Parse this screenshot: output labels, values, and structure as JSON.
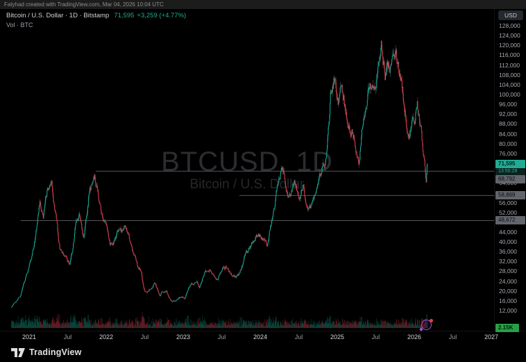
{
  "attribution": "Fatyhad created with TradingView.com, Mar 04, 2026 10:04 UTC",
  "legend": {
    "symbol_line": "Bitcoin / U.S. Dollar · 1D · Bitstamp",
    "price": "71,595",
    "change": "+3,259 (+4.77%)",
    "volume_line": "Vol · BTC"
  },
  "watermark": {
    "title": "BTCUSD, 1D",
    "subtitle": "Bitcoin / U.S. Dollar"
  },
  "price_axis": {
    "currency_button": "USD",
    "ticks": [
      "128,000",
      "124,000",
      "120,000",
      "116,000",
      "112,000",
      "108,000",
      "104,000",
      "100,000",
      "96,000",
      "92,000",
      "88,000",
      "84,000",
      "80,000",
      "76,000",
      "64,000",
      "56,000",
      "52,000",
      "44,000",
      "40,000",
      "36,000",
      "32,000",
      "28,000",
      "24,000",
      "20,000",
      "16,000",
      "12,000"
    ],
    "last_price_label": "71,595",
    "countdown": "13:55:29",
    "volume_value_label": "2.15K"
  },
  "time_axis": {
    "ticks": [
      {
        "label": "2021",
        "year": 2021
      },
      {
        "label": "Jul",
        "year": 2021.5
      },
      {
        "label": "2022",
        "year": 2022
      },
      {
        "label": "Jul",
        "year": 2022.5
      },
      {
        "label": "2023",
        "year": 2023
      },
      {
        "label": "Jul",
        "year": 2023.5
      },
      {
        "label": "2024",
        "year": 2024
      },
      {
        "label": "Jul",
        "year": 2024.5
      },
      {
        "label": "2025",
        "year": 2025
      },
      {
        "label": "Jul",
        "year": 2025.5
      },
      {
        "label": "2026",
        "year": 2026
      },
      {
        "label": "Jul",
        "year": 2026.5
      },
      {
        "label": "2027",
        "year": 2027
      }
    ]
  },
  "footer": {
    "brand": "TradingView"
  },
  "colors": {
    "background": "#000000",
    "up": "#17a38f",
    "down": "#cf3f4e",
    "up_volume": "rgba(16,150,128,0.45)",
    "down_volume": "rgba(207,63,78,0.45)",
    "accent": "#22ab94",
    "line": "#71747c",
    "line_label_bg": "#62656d",
    "last_price_bg": "#22ab94",
    "volume_label_bg": "#28a046"
  },
  "chart_data": {
    "type": "candlestick",
    "symbol": "BTCUSD",
    "name": "Bitcoin / U.S. Dollar",
    "exchange": "Bitstamp",
    "timeframe": "1D",
    "as_of": "Mar 04, 2026 10:04 UTC",
    "last_candle": {
      "close": 71595,
      "change": 3259,
      "change_pct": 4.77,
      "direction": "up"
    },
    "y_axis": {
      "min": 12000,
      "max": 128000,
      "step": 4000,
      "currency": "USD",
      "grid": false
    },
    "x_axis": {
      "start_year": 2020.77,
      "end_year": 2027.04
    },
    "horizontal_lines": [
      {
        "price": 68792,
        "label": "68,792",
        "from_year": 2021.865
      },
      {
        "price": 58869,
        "label": "58,869",
        "from_year": 2023.73
      },
      {
        "price": 48672,
        "label": "48,672",
        "from_year": 2020.89
      }
    ],
    "volume_last_label": "2.15K",
    "event_marker_year": 2026.15,
    "anchors": [
      [
        2020.77,
        13500
      ],
      [
        2020.88,
        18500
      ],
      [
        2020.96,
        26000
      ],
      [
        2021.02,
        33000
      ],
      [
        2021.06,
        38500
      ],
      [
        2021.1,
        46500
      ],
      [
        2021.14,
        57500
      ],
      [
        2021.18,
        48000
      ],
      [
        2021.24,
        58500
      ],
      [
        2021.29,
        63500
      ],
      [
        2021.34,
        54000
      ],
      [
        2021.4,
        36500
      ],
      [
        2021.46,
        34000
      ],
      [
        2021.53,
        29800
      ],
      [
        2021.6,
        46000
      ],
      [
        2021.66,
        48800
      ],
      [
        2021.71,
        41500
      ],
      [
        2021.78,
        61500
      ],
      [
        2021.85,
        67000
      ],
      [
        2021.91,
        56500
      ],
      [
        2021.99,
        46500
      ],
      [
        2022.05,
        38500
      ],
      [
        2022.16,
        43800
      ],
      [
        2022.24,
        46500
      ],
      [
        2022.32,
        38500
      ],
      [
        2022.4,
        29800
      ],
      [
        2022.46,
        28500
      ],
      [
        2022.5,
        19000
      ],
      [
        2022.56,
        21500
      ],
      [
        2022.63,
        24300
      ],
      [
        2022.7,
        18800
      ],
      [
        2022.78,
        20200
      ],
      [
        2022.86,
        15700
      ],
      [
        2022.94,
        16900
      ],
      [
        2023.02,
        16700
      ],
      [
        2023.1,
        23200
      ],
      [
        2023.16,
        24800
      ],
      [
        2023.21,
        21900
      ],
      [
        2023.28,
        28500
      ],
      [
        2023.34,
        29800
      ],
      [
        2023.45,
        26200
      ],
      [
        2023.52,
        30600
      ],
      [
        2023.58,
        29200
      ],
      [
        2023.66,
        25800
      ],
      [
        2023.73,
        27200
      ],
      [
        2023.8,
        34600
      ],
      [
        2023.89,
        37800
      ],
      [
        2023.98,
        43800
      ],
      [
        2024.04,
        42800
      ],
      [
        2024.09,
        39800
      ],
      [
        2024.16,
        52000
      ],
      [
        2024.21,
        61500
      ],
      [
        2024.27,
        71500
      ],
      [
        2024.33,
        64500
      ],
      [
        2024.38,
        60500
      ],
      [
        2024.44,
        67800
      ],
      [
        2024.51,
        61000
      ],
      [
        2024.56,
        65500
      ],
      [
        2024.62,
        53500
      ],
      [
        2024.68,
        57500
      ],
      [
        2024.74,
        61500
      ],
      [
        2024.8,
        66500
      ],
      [
        2024.86,
        76000
      ],
      [
        2024.91,
        97000
      ],
      [
        2024.96,
        104500
      ],
      [
        2025.01,
        97500
      ],
      [
        2025.06,
        104500
      ],
      [
        2025.12,
        94500
      ],
      [
        2025.17,
        86000
      ],
      [
        2025.23,
        83000
      ],
      [
        2025.28,
        77500
      ],
      [
        2025.34,
        94500
      ],
      [
        2025.4,
        104500
      ],
      [
        2025.46,
        103500
      ],
      [
        2025.52,
        109500
      ],
      [
        2025.57,
        119500
      ],
      [
        2025.62,
        107500
      ],
      [
        2025.68,
        113500
      ],
      [
        2025.76,
        122500
      ],
      [
        2025.82,
        107000
      ],
      [
        2025.88,
        94500
      ],
      [
        2025.93,
        86500
      ],
      [
        2025.99,
        91000
      ],
      [
        2026.04,
        96500
      ],
      [
        2026.09,
        83500
      ],
      [
        2026.13,
        71500
      ],
      [
        2026.155,
        63500
      ],
      [
        2026.17,
        71595
      ]
    ]
  }
}
